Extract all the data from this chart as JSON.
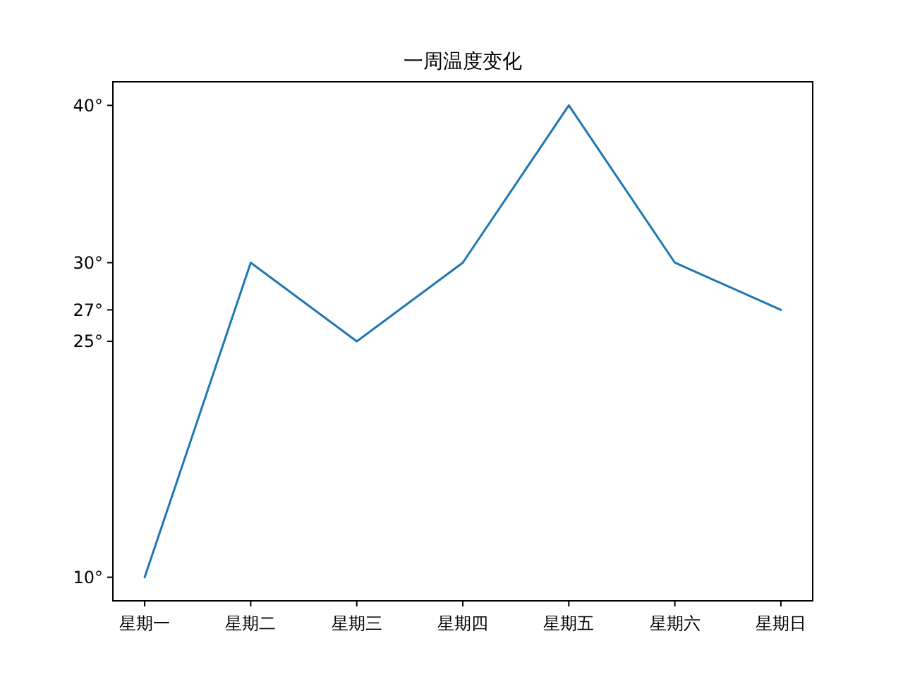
{
  "chart_data": {
    "type": "line",
    "title": "一周温度变化",
    "categories": [
      "星期一",
      "星期二",
      "星期三",
      "星期四",
      "星期五",
      "星期六",
      "星期日"
    ],
    "series": [
      {
        "color": "#1f77b4",
        "values": [
          10,
          30,
          25,
          30,
          40,
          30,
          27
        ]
      }
    ],
    "ylim": [
      8.5,
      41.5
    ],
    "yticks": [
      {
        "value": 10,
        "label": "10°"
      },
      {
        "value": 25,
        "label": "25°"
      },
      {
        "value": 27,
        "label": "27°"
      },
      {
        "value": 30,
        "label": "30°"
      },
      {
        "value": 40,
        "label": "40°"
      }
    ],
    "grid": false,
    "marker": "none",
    "line_style": "solid"
  }
}
